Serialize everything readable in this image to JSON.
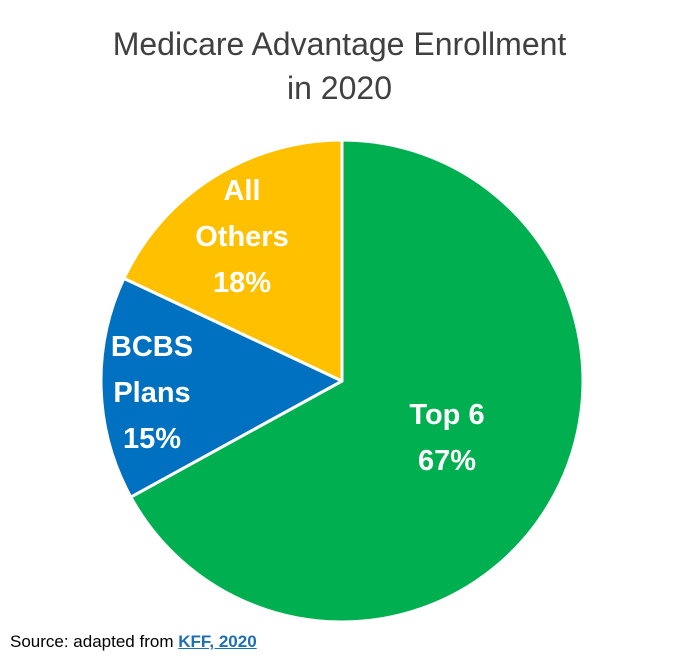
{
  "title": {
    "line1": "Medicare Advantage Enrollment",
    "line2": "in 2020"
  },
  "chart_data": {
    "type": "pie",
    "title": "Medicare Advantage Enrollment in 2020",
    "slices": [
      {
        "label_lines": [
          "Top 6"
        ],
        "percent_label": "67%",
        "value": 67,
        "color": "#00b050"
      },
      {
        "label_lines": [
          "BCBS",
          "Plans"
        ],
        "percent_label": "15%",
        "value": 15,
        "color": "#0070c0"
      },
      {
        "label_lines": [
          "All",
          "Others"
        ],
        "percent_label": "18%",
        "value": 18,
        "color": "#ffc000"
      }
    ],
    "start": "12 o'clock",
    "direction": "clockwise",
    "legend": "none"
  },
  "source": {
    "prefix": "Source: adapted from ",
    "link_text": "KFF, 2020"
  }
}
